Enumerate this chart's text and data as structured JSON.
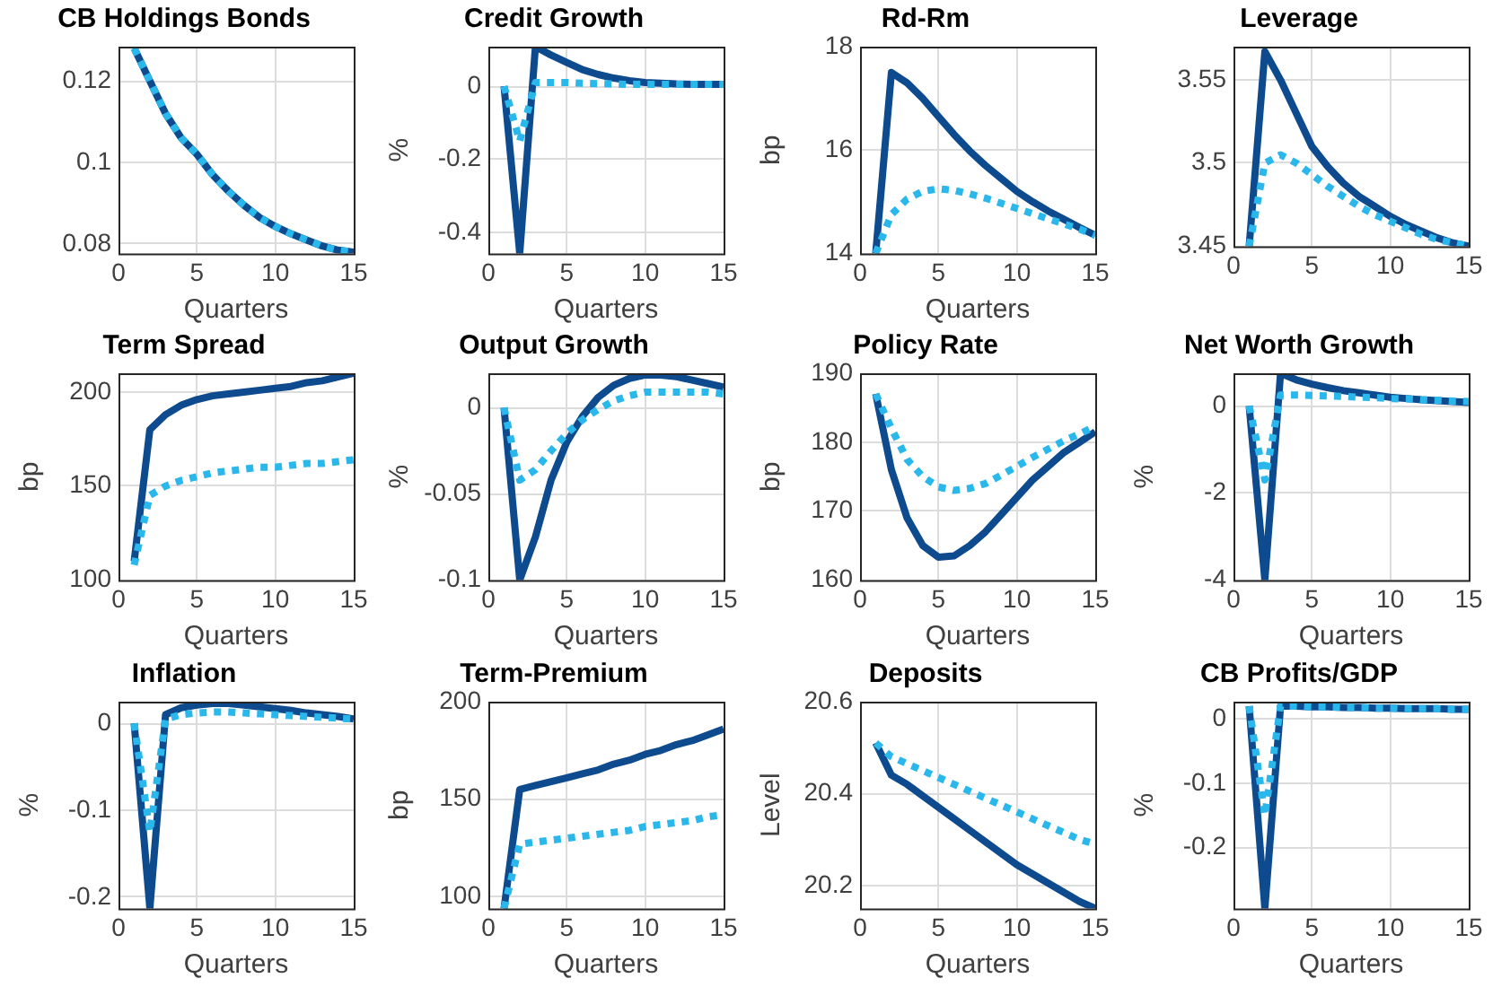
{
  "chart_data": [
    {
      "type": "line",
      "title": "CB Holdings Bonds",
      "xlabel": "Quarters",
      "x": [
        1,
        2,
        3,
        4,
        5,
        6,
        7,
        8,
        9,
        10,
        11,
        12,
        13,
        14,
        15
      ],
      "xlim": [
        0,
        15
      ],
      "xticks": [
        0,
        5,
        10,
        15
      ],
      "ylim": [
        0.0777,
        0.1284
      ],
      "yticks": [
        0.08,
        0.1,
        0.12
      ],
      "grid": true,
      "legend": false,
      "marker": "none",
      "series": [
        {
          "color": "#0d4a8e",
          "line_style": "solid",
          "values": [
            0.128,
            0.12,
            0.112,
            0.106,
            0.102,
            0.097,
            0.093,
            0.0895,
            0.0865,
            0.0843,
            0.0825,
            0.081,
            0.0795,
            0.0785,
            0.078
          ]
        },
        {
          "color": "#2ab8ec",
          "line_style": "dotted",
          "values": [
            0.128,
            0.12,
            0.112,
            0.106,
            0.102,
            0.097,
            0.093,
            0.0895,
            0.0865,
            0.0843,
            0.0825,
            0.081,
            0.0795,
            0.0785,
            0.078
          ]
        }
      ]
    },
    {
      "type": "line",
      "title": "Credit Growth",
      "xlabel": "Quarters",
      "ylabel": "%",
      "x": [
        1,
        2,
        3,
        4,
        5,
        6,
        7,
        8,
        9,
        10,
        11,
        12,
        13,
        14,
        15
      ],
      "xlim": [
        0,
        15
      ],
      "xticks": [
        0,
        5,
        10,
        15
      ],
      "ylim": [
        -0.457,
        0.108
      ],
      "yticks": [
        -0.4,
        -0.2,
        0
      ],
      "grid": true,
      "legend": false,
      "marker": "none",
      "series": [
        {
          "color": "#0d4a8e",
          "line_style": "solid",
          "values": [
            0,
            -0.457,
            0.108,
            0.085,
            0.065,
            0.045,
            0.032,
            0.022,
            0.015,
            0.01,
            0.008,
            0.006,
            0.005,
            0.005,
            0.005
          ]
        },
        {
          "color": "#2ab8ec",
          "line_style": "dotted",
          "values": [
            0,
            -0.15,
            0.01,
            0.01,
            0.01,
            0.008,
            0.007,
            0.006,
            0.005,
            0.005,
            0.005,
            0.005,
            0.005,
            0.005,
            0.005
          ]
        }
      ]
    },
    {
      "type": "line",
      "title": "Rd-Rm",
      "xlabel": "Quarters",
      "ylabel": "bp",
      "x": [
        1,
        2,
        3,
        4,
        5,
        6,
        7,
        8,
        9,
        10,
        11,
        12,
        13,
        14,
        15
      ],
      "xlim": [
        0,
        15
      ],
      "xticks": [
        0,
        5,
        10,
        15
      ],
      "ylim": [
        14,
        18
      ],
      "yticks": [
        14,
        16,
        18
      ],
      "grid": true,
      "legend": false,
      "marker": "none",
      "series": [
        {
          "color": "#0d4a8e",
          "line_style": "solid",
          "values": [
            14,
            17.5,
            17.3,
            17.0,
            16.65,
            16.3,
            15.98,
            15.7,
            15.45,
            15.2,
            15.0,
            14.82,
            14.66,
            14.5,
            14.35
          ]
        },
        {
          "color": "#2ab8ec",
          "line_style": "dotted",
          "values": [
            14,
            14.75,
            15.05,
            15.2,
            15.25,
            15.22,
            15.15,
            15.07,
            14.97,
            14.87,
            14.77,
            14.67,
            14.57,
            14.47,
            14.35
          ]
        }
      ]
    },
    {
      "type": "line",
      "title": "Leverage",
      "x": [
        1,
        2,
        3,
        4,
        5,
        6,
        7,
        8,
        9,
        10,
        11,
        12,
        13,
        14,
        15
      ],
      "xlim": [
        0,
        15
      ],
      "xticks": [
        0,
        5,
        10,
        15
      ],
      "ylim": [
        3.45,
        3.57
      ],
      "yticks": [
        3.45,
        3.5,
        3.55
      ],
      "grid": true,
      "legend": false,
      "marker": "none",
      "series": [
        {
          "color": "#0d4a8e",
          "line_style": "solid",
          "values": [
            3.45,
            3.567,
            3.55,
            3.53,
            3.51,
            3.498,
            3.488,
            3.48,
            3.474,
            3.468,
            3.463,
            3.459,
            3.455,
            3.452,
            3.45
          ]
        },
        {
          "color": "#2ab8ec",
          "line_style": "dotted",
          "values": [
            3.45,
            3.5,
            3.505,
            3.5,
            3.493,
            3.486,
            3.48,
            3.474,
            3.469,
            3.465,
            3.461,
            3.457,
            3.454,
            3.452,
            3.45
          ]
        }
      ]
    },
    {
      "type": "line",
      "title": "Term Spread",
      "xlabel": "Quarters",
      "ylabel": "bp",
      "x": [
        1,
        2,
        3,
        4,
        5,
        6,
        7,
        8,
        9,
        10,
        11,
        12,
        13,
        14,
        15
      ],
      "xlim": [
        0,
        15
      ],
      "xticks": [
        0,
        5,
        10,
        15
      ],
      "ylim": [
        100,
        210
      ],
      "yticks": [
        100,
        150,
        200
      ],
      "grid": true,
      "legend": false,
      "marker": "none",
      "series": [
        {
          "color": "#0d4a8e",
          "line_style": "solid",
          "values": [
            110,
            180,
            188,
            193,
            196,
            198,
            199,
            200,
            201,
            202,
            203,
            205,
            206,
            208,
            210
          ]
        },
        {
          "color": "#2ab8ec",
          "line_style": "dotted",
          "values": [
            108,
            145,
            150,
            153,
            155,
            157,
            158,
            159,
            160,
            160,
            161,
            162,
            162,
            163,
            164
          ]
        }
      ]
    },
    {
      "type": "line",
      "title": "Output Growth",
      "xlabel": "Quarters",
      "ylabel": "%",
      "x": [
        1,
        2,
        3,
        4,
        5,
        6,
        7,
        8,
        9,
        10,
        11,
        12,
        13,
        14,
        15
      ],
      "xlim": [
        0,
        15
      ],
      "xticks": [
        0,
        5,
        10,
        15
      ],
      "ylim": [
        -0.1,
        0.02
      ],
      "yticks": [
        -0.1,
        -0.05,
        0
      ],
      "grid": true,
      "legend": false,
      "marker": "none",
      "series": [
        {
          "color": "#0d4a8e",
          "line_style": "solid",
          "values": [
            0,
            -0.1,
            -0.075,
            -0.042,
            -0.02,
            -0.005,
            0.006,
            0.013,
            0.017,
            0.019,
            0.019,
            0.018,
            0.016,
            0.014,
            0.012
          ]
        },
        {
          "color": "#2ab8ec",
          "line_style": "dotted",
          "values": [
            0,
            -0.042,
            -0.036,
            -0.025,
            -0.015,
            -0.007,
            -0.001,
            0.004,
            0.007,
            0.009,
            0.009,
            0.009,
            0.009,
            0.009,
            0.008
          ]
        }
      ]
    },
    {
      "type": "line",
      "title": "Policy Rate",
      "xlabel": "Quarters",
      "ylabel": "bp",
      "x": [
        1,
        2,
        3,
        4,
        5,
        6,
        7,
        8,
        9,
        10,
        11,
        12,
        13,
        14,
        15
      ],
      "xlim": [
        0,
        15
      ],
      "xticks": [
        0,
        5,
        10,
        15
      ],
      "ylim": [
        160,
        190
      ],
      "yticks": [
        160,
        170,
        180,
        190
      ],
      "grid": true,
      "legend": false,
      "marker": "none",
      "series": [
        {
          "color": "#0d4a8e",
          "line_style": "solid",
          "values": [
            187,
            176,
            169,
            165,
            163.3,
            163.5,
            165,
            167,
            169.5,
            172,
            174.5,
            176.5,
            178.5,
            180,
            181.5
          ]
        },
        {
          "color": "#2ab8ec",
          "line_style": "dotted",
          "values": [
            187,
            182,
            177.5,
            175,
            173.5,
            173,
            173.3,
            174,
            175.2,
            176.5,
            177.8,
            179,
            180.2,
            181.2,
            182.3
          ]
        }
      ]
    },
    {
      "type": "line",
      "title": "Net Worth Growth",
      "xlabel": "Quarters",
      "ylabel": "%",
      "x": [
        1,
        2,
        3,
        4,
        5,
        6,
        7,
        8,
        9,
        10,
        11,
        12,
        13,
        14,
        15
      ],
      "xlim": [
        0,
        15
      ],
      "xticks": [
        0,
        5,
        10,
        15
      ],
      "ylim": [
        -4,
        0.75
      ],
      "yticks": [
        -4,
        -2,
        0
      ],
      "grid": true,
      "legend": false,
      "marker": "none",
      "series": [
        {
          "color": "#0d4a8e",
          "line_style": "solid",
          "values": [
            0,
            -4,
            0.75,
            0.6,
            0.5,
            0.42,
            0.35,
            0.3,
            0.25,
            0.2,
            0.17,
            0.14,
            0.12,
            0.1,
            0.08
          ]
        },
        {
          "color": "#2ab8ec",
          "line_style": "dotted",
          "values": [
            0,
            -1.7,
            0.25,
            0.25,
            0.24,
            0.23,
            0.22,
            0.2,
            0.19,
            0.17,
            0.16,
            0.14,
            0.13,
            0.11,
            0.1
          ]
        }
      ]
    },
    {
      "type": "line",
      "title": "Inflation",
      "xlabel": "Quarters",
      "ylabel": "%",
      "x": [
        1,
        2,
        3,
        4,
        5,
        6,
        7,
        8,
        9,
        10,
        11,
        12,
        13,
        14,
        15
      ],
      "xlim": [
        0,
        15
      ],
      "xticks": [
        0,
        5,
        10,
        15
      ],
      "ylim": [
        -0.213,
        0.025
      ],
      "yticks": [
        -0.2,
        -0.1,
        0
      ],
      "grid": true,
      "legend": false,
      "marker": "none",
      "series": [
        {
          "color": "#0d4a8e",
          "line_style": "solid",
          "values": [
            0,
            -0.213,
            0.01,
            0.018,
            0.021,
            0.023,
            0.023,
            0.021,
            0.019,
            0.017,
            0.015,
            0.012,
            0.01,
            0.008,
            0.005
          ]
        },
        {
          "color": "#2ab8ec",
          "line_style": "dotted",
          "values": [
            0,
            -0.125,
            0.005,
            0.01,
            0.012,
            0.013,
            0.013,
            0.012,
            0.011,
            0.01,
            0.009,
            0.008,
            0.007,
            0.006,
            0.005
          ]
        }
      ]
    },
    {
      "type": "line",
      "title": "Term-Premium",
      "xlabel": "Quarters",
      "ylabel": "bp",
      "x": [
        1,
        2,
        3,
        4,
        5,
        6,
        7,
        8,
        9,
        10,
        11,
        12,
        13,
        14,
        15
      ],
      "xlim": [
        0,
        15
      ],
      "xticks": [
        0,
        5,
        10,
        15
      ],
      "ylim": [
        94,
        200
      ],
      "yticks": [
        100,
        150,
        200
      ],
      "grid": true,
      "legend": false,
      "marker": "none",
      "series": [
        {
          "color": "#0d4a8e",
          "line_style": "solid",
          "values": [
            94,
            155,
            157,
            159,
            161,
            163,
            165,
            168,
            170,
            173,
            175,
            178,
            180,
            183,
            186
          ]
        },
        {
          "color": "#2ab8ec",
          "line_style": "dotted",
          "values": [
            94,
            127,
            128,
            129,
            130,
            131,
            132,
            133,
            134,
            136,
            137,
            138,
            139,
            141,
            142
          ]
        }
      ]
    },
    {
      "type": "line",
      "title": "Deposits",
      "xlabel": "Quarters",
      "ylabel": "Level",
      "x": [
        1,
        2,
        3,
        4,
        5,
        6,
        7,
        8,
        9,
        10,
        11,
        12,
        13,
        14,
        15
      ],
      "xlim": [
        0,
        15
      ],
      "xticks": [
        0,
        5,
        10,
        15
      ],
      "ylim": [
        20.15,
        20.6
      ],
      "yticks": [
        20.2,
        20.4,
        20.6
      ],
      "grid": true,
      "legend": false,
      "marker": "none",
      "series": [
        {
          "color": "#0d4a8e",
          "line_style": "solid",
          "values": [
            20.51,
            20.44,
            20.42,
            20.395,
            20.37,
            20.345,
            20.32,
            20.295,
            20.27,
            20.245,
            20.225,
            20.205,
            20.185,
            20.165,
            20.15
          ]
        },
        {
          "color": "#2ab8ec",
          "line_style": "dotted",
          "values": [
            20.51,
            20.48,
            20.465,
            20.45,
            20.435,
            20.42,
            20.405,
            20.39,
            20.375,
            20.36,
            20.345,
            20.33,
            20.315,
            20.3,
            20.29
          ]
        }
      ]
    },
    {
      "type": "line",
      "title": "CB Profits/GDP",
      "xlabel": "Quarters",
      "ylabel": "%",
      "x": [
        1,
        2,
        3,
        4,
        5,
        6,
        7,
        8,
        9,
        10,
        11,
        12,
        13,
        14,
        15
      ],
      "xlim": [
        0,
        15
      ],
      "xticks": [
        0,
        5,
        10,
        15
      ],
      "ylim": [
        -0.295,
        0.027
      ],
      "yticks": [
        -0.2,
        -0.1,
        0
      ],
      "grid": true,
      "legend": false,
      "marker": "none",
      "series": [
        {
          "color": "#0d4a8e",
          "line_style": "solid",
          "values": [
            0.02,
            -0.295,
            0.02,
            0.02,
            0.019,
            0.019,
            0.018,
            0.018,
            0.017,
            0.017,
            0.016,
            0.016,
            0.016,
            0.015,
            0.015
          ]
        },
        {
          "color": "#2ab8ec",
          "line_style": "dotted",
          "values": [
            0.02,
            -0.15,
            0.02,
            0.02,
            0.019,
            0.019,
            0.018,
            0.018,
            0.017,
            0.017,
            0.016,
            0.016,
            0.016,
            0.015,
            0.015
          ]
        }
      ]
    }
  ]
}
